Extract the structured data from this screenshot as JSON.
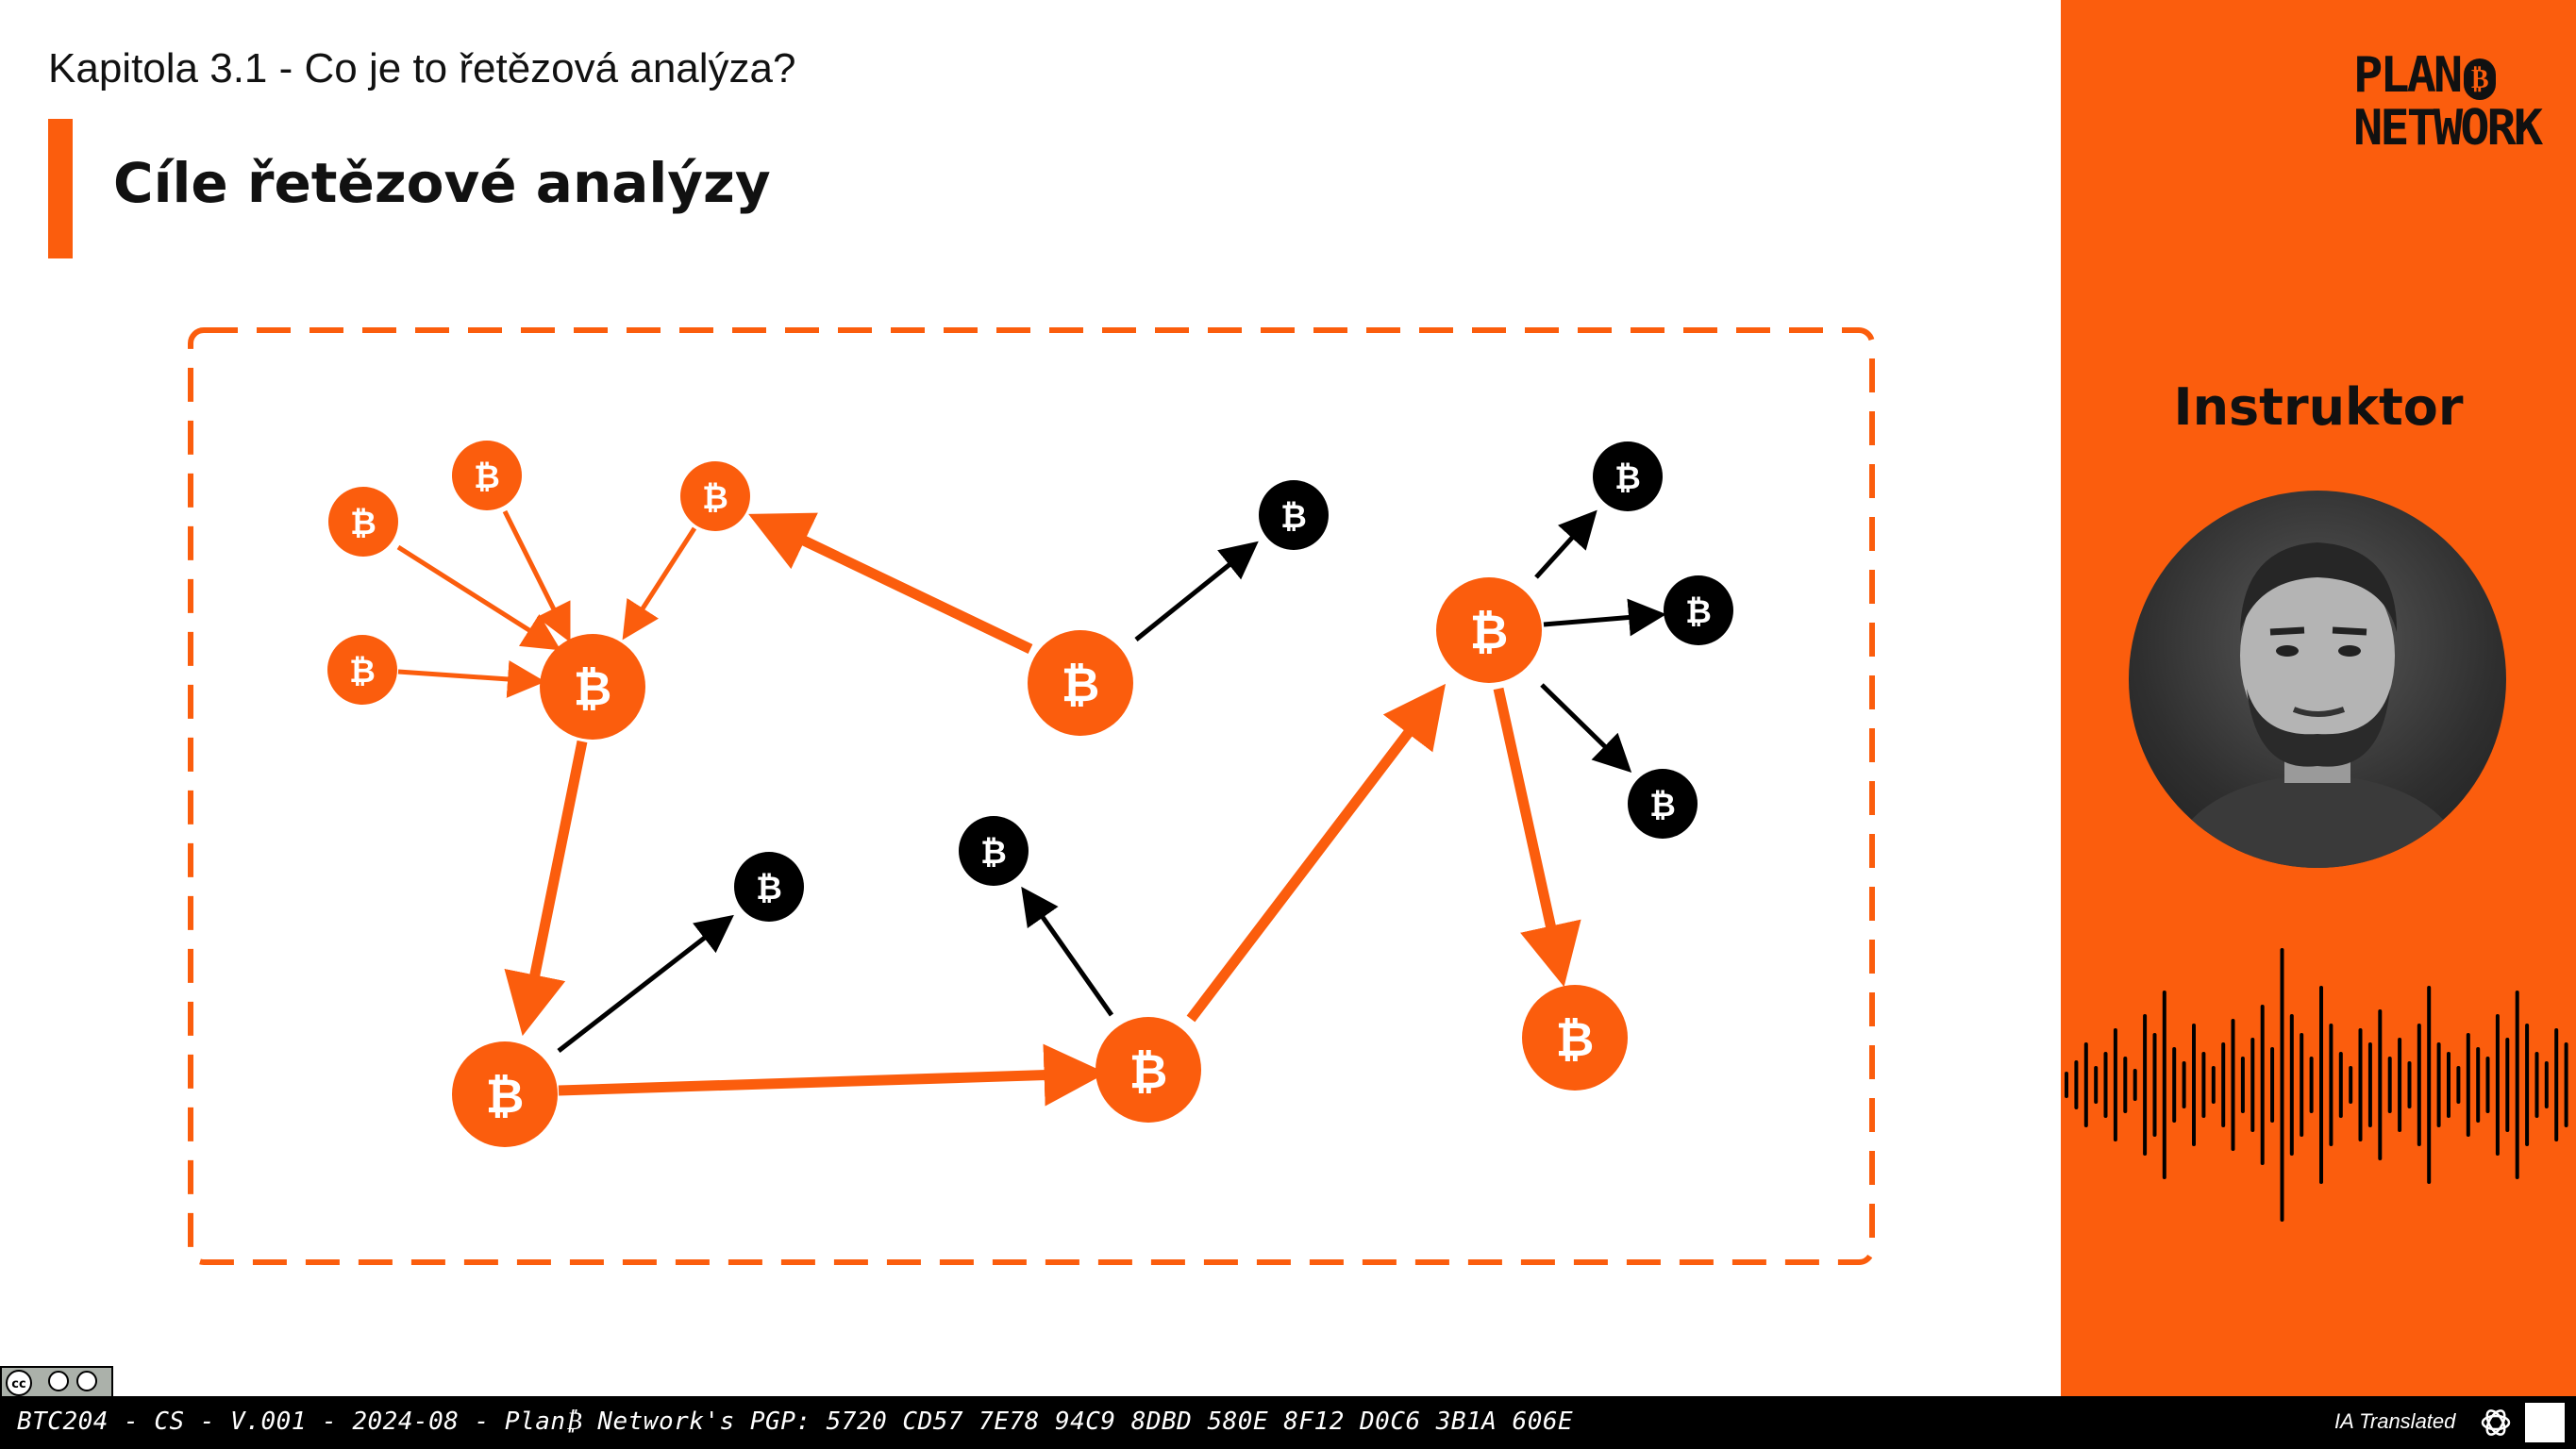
{
  "header": {
    "chapter": "Kapitola 3.1 - Co je to řetězová analýza?",
    "title": "Cíle řetězové analýzy"
  },
  "sidebar": {
    "logo_line1": "PLAN",
    "logo_line2": "NETWORK",
    "logo_symbol": "₿",
    "instructor_label": "Instruktor"
  },
  "footer": {
    "info": "BTC204 - CS - V.001 - 2024-08 - Plan₿ Network's PGP: 5720 CD57 7E78 94C9 8DBD 580E 8F12 D0C6 3B1A 606E",
    "translated": "IA Translated",
    "icon_names": [
      "creative-commons-icon",
      "openai-icon",
      "bitcoin-lab-icon"
    ]
  },
  "diagram": {
    "coin_symbol": "₿",
    "colors": {
      "accent": "#fb5d0d",
      "dark": "#000000"
    }
  }
}
